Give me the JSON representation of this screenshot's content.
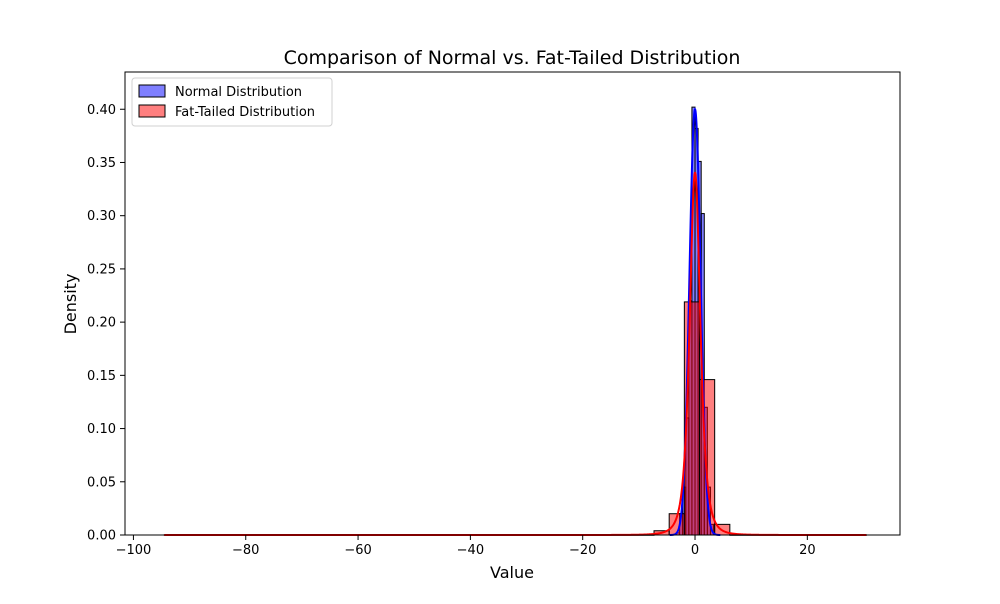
{
  "chart_data": {
    "type": "histogram-kde",
    "title": "Comparison of Normal vs. Fat-Tailed Distribution",
    "xlabel": "Value",
    "ylabel": "Density",
    "xlim": [
      -101.5,
      36.5
    ],
    "ylim": [
      0,
      0.435
    ],
    "x_ticks": [
      -100,
      -80,
      -60,
      -40,
      -20,
      0,
      20
    ],
    "x_tick_labels": [
      "−100",
      "−80",
      "−60",
      "−40",
      "−20",
      "0",
      "20"
    ],
    "y_ticks": [
      0.0,
      0.05,
      0.1,
      0.15,
      0.2,
      0.25,
      0.3,
      0.35,
      0.4
    ],
    "y_tick_labels": [
      "0.00",
      "0.05",
      "0.10",
      "0.15",
      "0.20",
      "0.25",
      "0.30",
      "0.35",
      "0.40"
    ],
    "grid": false,
    "legend_position": "top-left",
    "series": [
      {
        "name": "Normal Distribution",
        "color": "#0000ff",
        "bars": [
          {
            "x0": -3.3,
            "x1": -2.75,
            "value": 0.002
          },
          {
            "x0": -2.75,
            "x1": -2.2,
            "value": 0.02
          },
          {
            "x0": -2.2,
            "x1": -1.65,
            "value": 0.045
          },
          {
            "x0": -1.65,
            "x1": -1.1,
            "value": 0.11
          },
          {
            "x0": -1.1,
            "x1": -0.55,
            "value": 0.22
          },
          {
            "x0": -0.55,
            "x1": 0.0,
            "value": 0.402
          },
          {
            "x0": 0.0,
            "x1": 0.55,
            "value": 0.382
          },
          {
            "x0": 0.55,
            "x1": 1.1,
            "value": 0.351
          },
          {
            "x0": 1.1,
            "x1": 1.65,
            "value": 0.302
          },
          {
            "x0": 1.65,
            "x1": 2.2,
            "value": 0.12
          },
          {
            "x0": 2.2,
            "x1": 2.75,
            "value": 0.045
          },
          {
            "x0": 2.75,
            "x1": 3.3,
            "value": 0.01
          }
        ],
        "kde_sigma": 1.0,
        "kde_peak": 0.4
      },
      {
        "name": "Fat-Tailed Distribution",
        "color": "#ff0000",
        "bars": [
          {
            "x0": -94.5,
            "x1": -7.3,
            "value": 0.0002
          },
          {
            "x0": -7.3,
            "x1": -4.6,
            "value": 0.004
          },
          {
            "x0": -4.6,
            "x1": -1.9,
            "value": 0.02
          },
          {
            "x0": -1.9,
            "x1": 0.8,
            "value": 0.219
          },
          {
            "x0": 0.8,
            "x1": 3.5,
            "value": 0.146
          },
          {
            "x0": 3.5,
            "x1": 6.2,
            "value": 0.01
          },
          {
            "x0": 6.2,
            "x1": 30.5,
            "value": 0.0002
          }
        ],
        "kde_peak": 0.341,
        "kde_range": [
          -94.5,
          30.5
        ]
      }
    ]
  }
}
